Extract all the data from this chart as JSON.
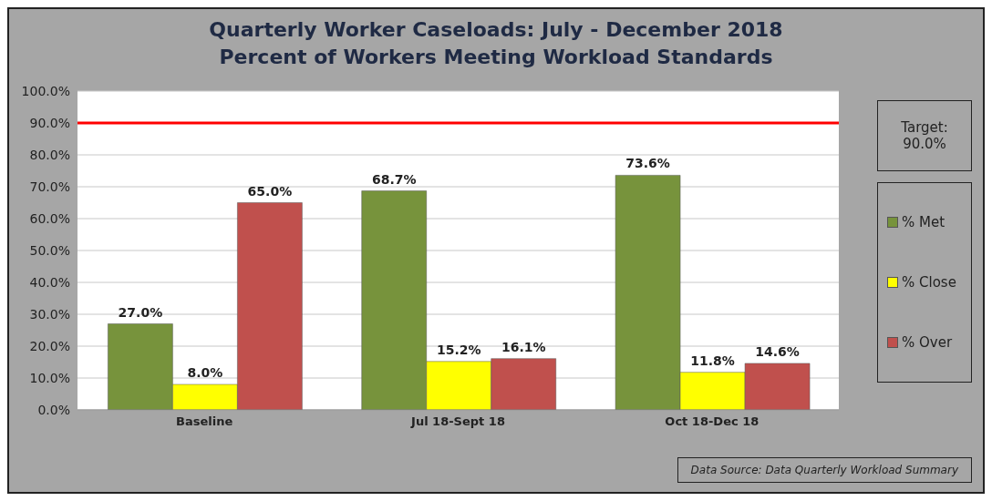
{
  "chart_data": {
    "type": "bar",
    "title": "Quarterly Worker Caseloads: July - December 2018",
    "subtitle": "Percent of Workers Meeting Workload Standards",
    "categories": [
      "Baseline",
      "Jul 18-Sept 18",
      "Oct 18-Dec 18"
    ],
    "series": [
      {
        "name": "% Met",
        "color": "#77933c",
        "values": [
          27.0,
          68.7,
          73.6
        ],
        "value_labels": [
          "27.0%",
          "68.7%",
          "73.6%"
        ]
      },
      {
        "name": "% Close",
        "color": "#ffff00",
        "values": [
          8.0,
          15.2,
          11.8
        ],
        "value_labels": [
          "8.0%",
          "15.2%",
          "11.8%"
        ]
      },
      {
        "name": "% Over",
        "color": "#c0504d",
        "values": [
          65.0,
          16.1,
          14.6
        ],
        "value_labels": [
          "65.0%",
          "16.1%",
          "14.6%"
        ]
      }
    ],
    "ylim": [
      0,
      100
    ],
    "yticks": [
      {
        "value": 0,
        "label": "0.0%"
      },
      {
        "value": 10,
        "label": "10.0%"
      },
      {
        "value": 20,
        "label": "20.0%"
      },
      {
        "value": 30,
        "label": "30.0%"
      },
      {
        "value": 40,
        "label": "40.0%"
      },
      {
        "value": 50,
        "label": "50.0%"
      },
      {
        "value": 60,
        "label": "60.0%"
      },
      {
        "value": 70,
        "label": "70.0%"
      },
      {
        "value": 80,
        "label": "80.0%"
      },
      {
        "value": 90,
        "label": "90.0%"
      },
      {
        "value": 100,
        "label": "100.0%"
      }
    ],
    "ref_lines": [
      {
        "axis": "y",
        "value": 90,
        "color": "#ff0000",
        "line_style": "solid"
      }
    ],
    "grid": "y",
    "legend": "right",
    "annotations": [
      "Target: 90.0%",
      "Data Source: Data Quarterly Workload Summary"
    ]
  }
}
